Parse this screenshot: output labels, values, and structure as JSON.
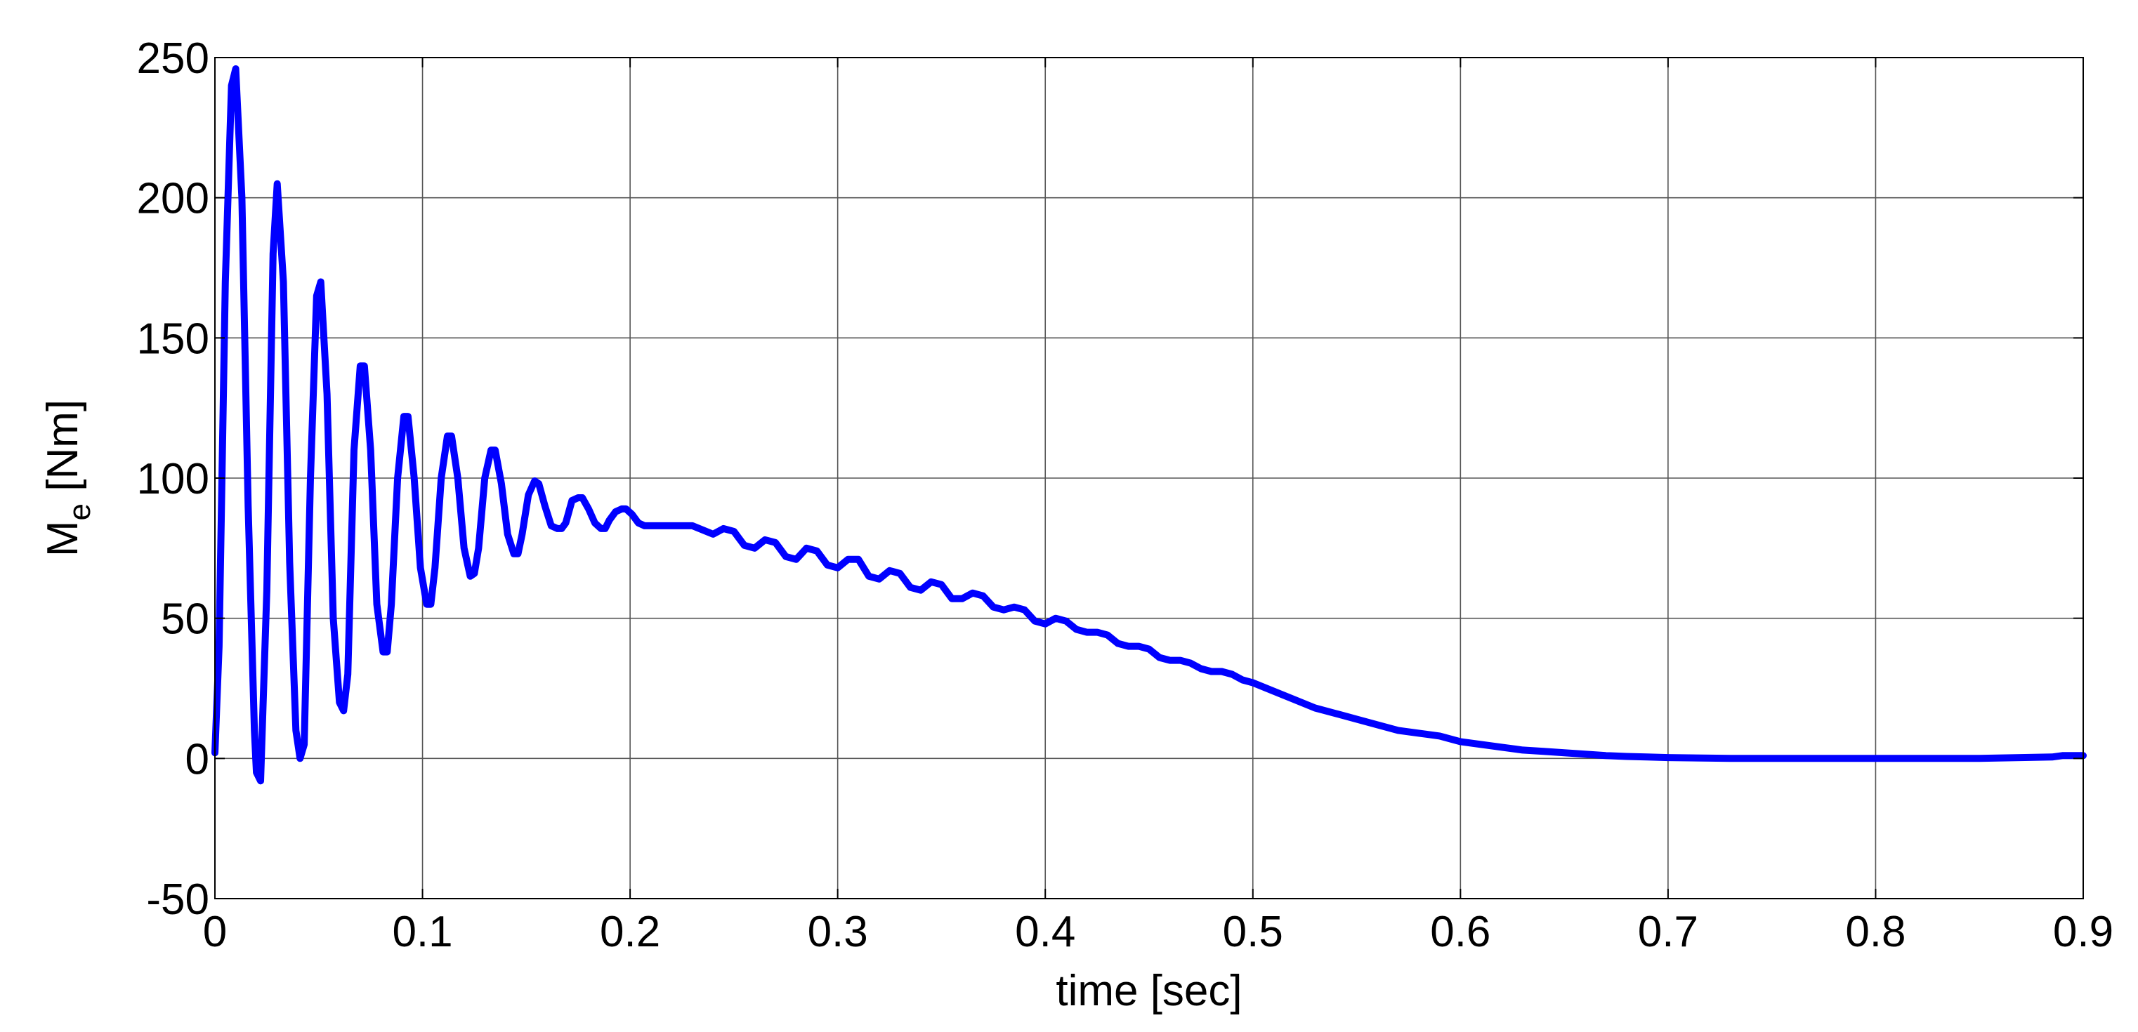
{
  "chart_data": {
    "type": "line",
    "title": "",
    "xlabel": "time [sec]",
    "ylabel": {
      "main": "M",
      "subscript": "e",
      "unit": " [Nm]"
    },
    "xlim": [
      0,
      0.9
    ],
    "ylim": [
      -50,
      250
    ],
    "x_ticks": [
      0,
      0.1,
      0.2,
      0.3,
      0.4,
      0.5,
      0.6,
      0.7,
      0.8,
      0.9
    ],
    "x_tick_labels": [
      "0",
      "0.1",
      "0.2",
      "0.3",
      "0.4",
      "0.5",
      "0.6",
      "0.7",
      "0.8",
      "0.9"
    ],
    "y_ticks": [
      -50,
      0,
      50,
      100,
      150,
      200,
      250
    ],
    "y_tick_labels": [
      "-50",
      "0",
      "50",
      "100",
      "150",
      "200",
      "250"
    ],
    "grid": true,
    "line_color": "#0000ff",
    "series": [
      {
        "x": [
          0,
          0.002,
          0.005,
          0.008,
          0.01,
          0.013,
          0.016,
          0.019,
          0.02,
          0.022,
          0.025,
          0.028,
          0.03,
          0.033,
          0.036,
          0.039,
          0.041,
          0.043,
          0.046,
          0.049,
          0.051,
          0.054,
          0.057,
          0.06,
          0.062,
          0.064,
          0.067,
          0.07,
          0.072,
          0.075,
          0.078,
          0.081,
          0.083,
          0.085,
          0.088,
          0.091,
          0.093,
          0.096,
          0.099,
          0.102,
          0.104,
          0.106,
          0.109,
          0.112,
          0.114,
          0.117,
          0.12,
          0.123,
          0.125,
          0.127,
          0.13,
          0.133,
          0.135,
          0.138,
          0.141,
          0.144,
          0.146,
          0.148,
          0.151,
          0.154,
          0.156,
          0.159,
          0.162,
          0.165,
          0.167,
          0.169,
          0.172,
          0.175,
          0.177,
          0.18,
          0.183,
          0.186,
          0.188,
          0.19,
          0.193,
          0.196,
          0.198,
          0.201,
          0.204,
          0.207,
          0.209,
          0.211,
          0.22,
          0.23,
          0.24,
          0.245,
          0.25,
          0.255,
          0.26,
          0.265,
          0.27,
          0.275,
          0.28,
          0.285,
          0.29,
          0.295,
          0.3,
          0.305,
          0.31,
          0.315,
          0.32,
          0.325,
          0.33,
          0.335,
          0.34,
          0.345,
          0.35,
          0.355,
          0.36,
          0.365,
          0.37,
          0.375,
          0.38,
          0.385,
          0.39,
          0.395,
          0.4,
          0.405,
          0.41,
          0.415,
          0.42,
          0.425,
          0.43,
          0.435,
          0.44,
          0.445,
          0.45,
          0.455,
          0.46,
          0.465,
          0.47,
          0.475,
          0.48,
          0.485,
          0.49,
          0.495,
          0.5,
          0.51,
          0.52,
          0.53,
          0.54,
          0.55,
          0.56,
          0.57,
          0.58,
          0.59,
          0.6,
          0.61,
          0.62,
          0.63,
          0.64,
          0.65,
          0.66,
          0.67,
          0.68,
          0.69,
          0.7,
          0.71,
          0.72,
          0.73,
          0.74,
          0.75,
          0.8,
          0.85,
          0.885,
          0.89,
          0.9
        ],
        "y": [
          2,
          40,
          170,
          240,
          246,
          200,
          90,
          10,
          -5,
          -8,
          60,
          180,
          205,
          170,
          70,
          10,
          0,
          5,
          100,
          165,
          170,
          130,
          50,
          20,
          17,
          30,
          110,
          140,
          140,
          110,
          55,
          38,
          38,
          55,
          100,
          122,
          122,
          100,
          68,
          55,
          55,
          68,
          100,
          115,
          115,
          100,
          75,
          65,
          66,
          75,
          100,
          110,
          110,
          98,
          80,
          73,
          73,
          80,
          94,
          99,
          98,
          90,
          83,
          82,
          82,
          84,
          92,
          93,
          93,
          89,
          84,
          82,
          82,
          85,
          88,
          89,
          89,
          87,
          84,
          83,
          83,
          83,
          83,
          83,
          80,
          82,
          81,
          76,
          75,
          78,
          77,
          72,
          71,
          75,
          74,
          69,
          68,
          71,
          71,
          65,
          64,
          67,
          66,
          61,
          60,
          63,
          62,
          57,
          57,
          59,
          58,
          54,
          53,
          54,
          53,
          49,
          48,
          50,
          49,
          46,
          45,
          45,
          44,
          41,
          40,
          40,
          39,
          36,
          35,
          35,
          34,
          32,
          31,
          31,
          30,
          28,
          27,
          24,
          21,
          18,
          16,
          14,
          12,
          10,
          9,
          8,
          6,
          5,
          4,
          3,
          2.5,
          2,
          1.5,
          1,
          0.7,
          0.5,
          0.3,
          0.2,
          0.1,
          0,
          0,
          0,
          0,
          0,
          0.5,
          1,
          1
        ]
      }
    ]
  }
}
